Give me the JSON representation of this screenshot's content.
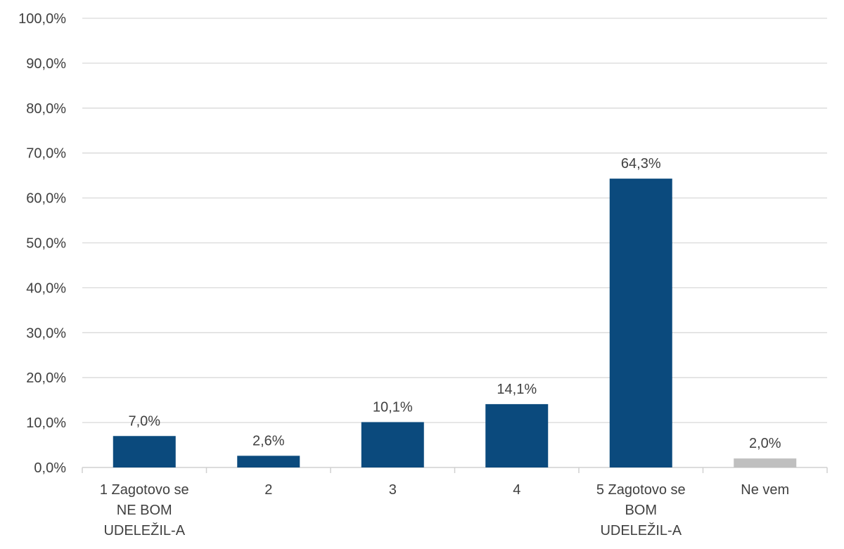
{
  "chart_data": {
    "type": "bar",
    "categories": [
      [
        "1 Zagotovo se",
        "NE BOM",
        "UDELEŽIL-A"
      ],
      [
        "2"
      ],
      [
        "3"
      ],
      [
        "4"
      ],
      [
        "5 Zagotovo se",
        "BOM",
        "UDELEŽIL-A"
      ],
      [
        "Ne vem"
      ]
    ],
    "values": [
      7.0,
      2.6,
      10.1,
      14.1,
      64.3,
      2.0
    ],
    "value_labels": [
      "7,0%",
      "2,6%",
      "10,1%",
      "14,1%",
      "64,3%",
      "2,0%"
    ],
    "ylim": [
      0,
      100
    ],
    "y_ticks": [
      0,
      10,
      20,
      30,
      40,
      50,
      60,
      70,
      80,
      90,
      100
    ],
    "y_tick_labels": [
      "0,0%",
      "10,0%",
      "20,0%",
      "30,0%",
      "40,0%",
      "50,0%",
      "60,0%",
      "70,0%",
      "80,0%",
      "90,0%",
      "100,0%"
    ],
    "grid": true,
    "legend": "none",
    "title": "",
    "xlabel": "",
    "ylabel": "",
    "colors": {
      "bar": "#0b4a7d",
      "bar_other": "#bfbfbf",
      "grid": "#d9d9d9",
      "axis": "#d0d0d0",
      "text": "#404040"
    }
  }
}
